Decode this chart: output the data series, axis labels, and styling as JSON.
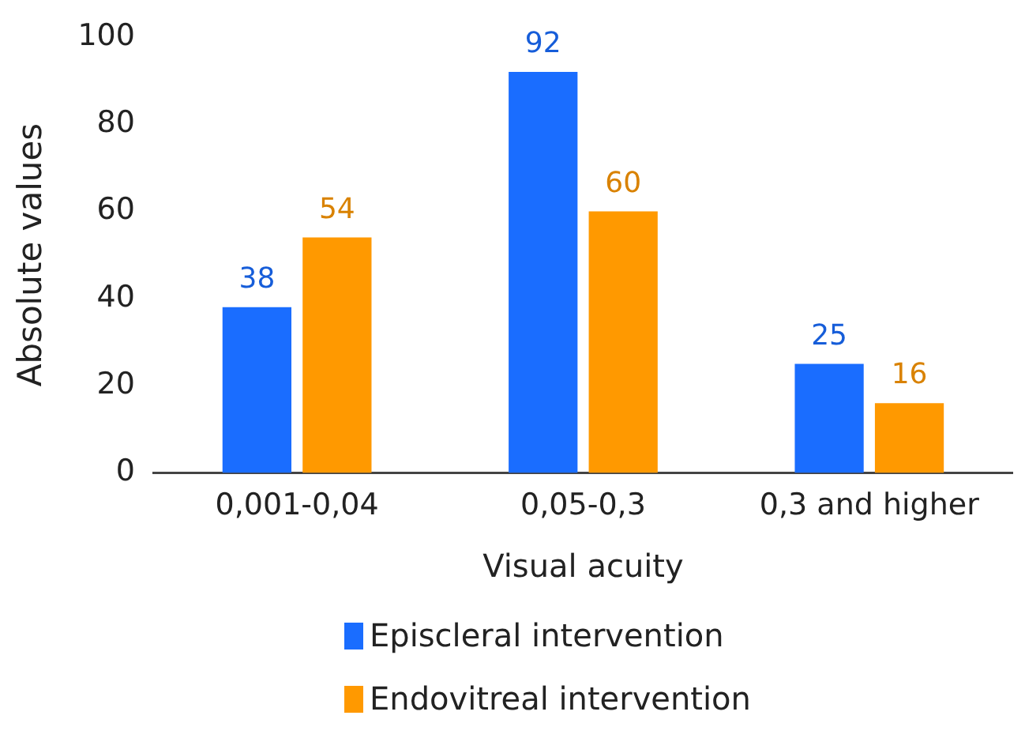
{
  "chart_data": {
    "type": "bar",
    "xlabel": "Visual acuity",
    "ylabel": "Absolute values",
    "categories": [
      "0,001-0,04",
      "0,05-0,3",
      "0,3 and higher"
    ],
    "series": [
      {
        "name": "Episcleral intervention",
        "color": "#1a6dff",
        "values": [
          38,
          92,
          25
        ]
      },
      {
        "name": "Endovitreal intervention",
        "color": "#ff9900",
        "values": [
          54,
          60,
          16
        ]
      }
    ],
    "ylim": [
      0,
      100
    ],
    "yticks": [
      0,
      20,
      40,
      60,
      80,
      100
    ],
    "grid": false,
    "legend": "bottom",
    "data_labels": true
  }
}
